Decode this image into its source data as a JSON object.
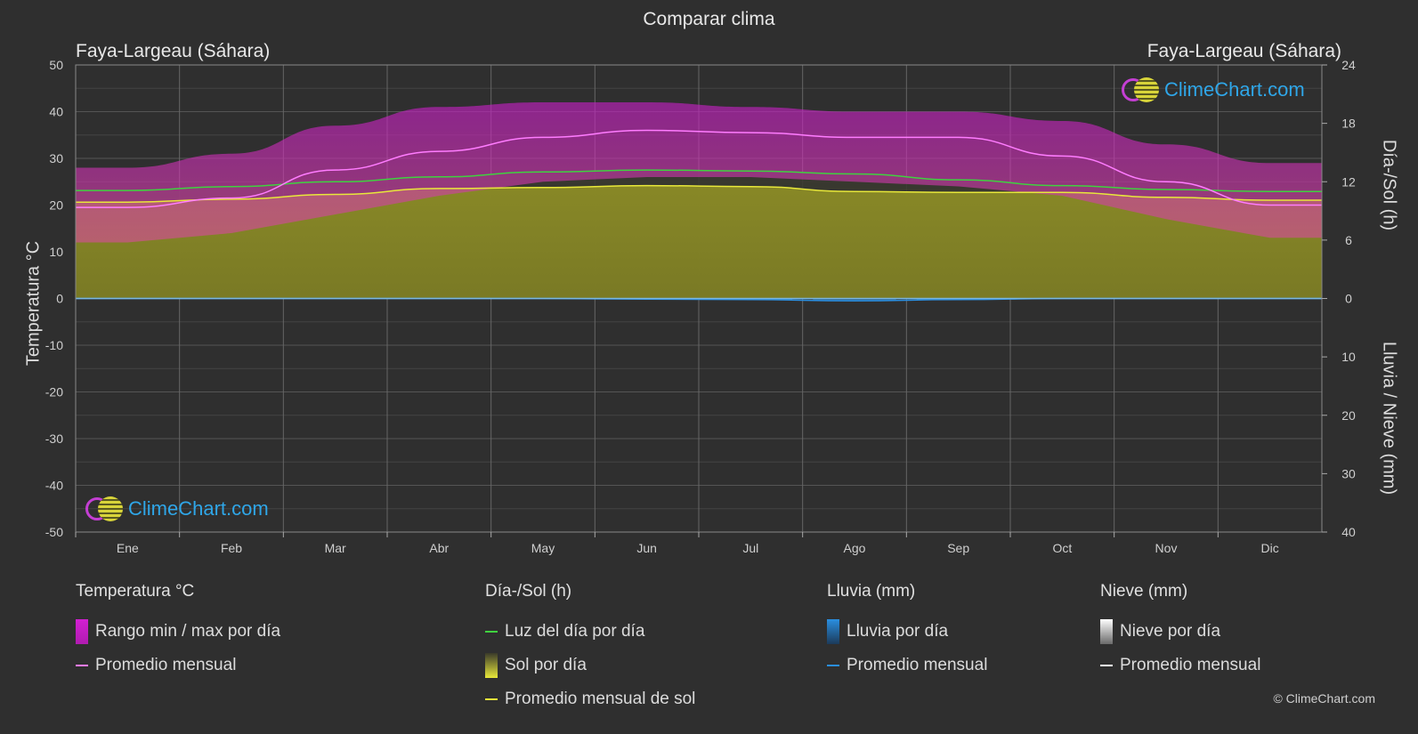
{
  "title": "Comparar clima",
  "location_left": "Faya-Largeau (Sáhara)",
  "location_right": "Faya-Largeau (Sáhara)",
  "axis": {
    "left_title": "Temperatura °C",
    "right_top_title": "Día-/Sol (h)",
    "right_bottom_title": "Lluvia / Nieve (mm)"
  },
  "logo_text": "ClimeChart.com",
  "copyright": "© ClimeChart.com",
  "legend": {
    "temp": {
      "head": "Temperatura °C",
      "range": "Rango min / max por día",
      "avg": "Promedio mensual"
    },
    "sun": {
      "head": "Día-/Sol (h)",
      "daylight": "Luz del día por día",
      "sunshine": "Sol por día",
      "avg": "Promedio mensual de sol"
    },
    "rain": {
      "head": "Lluvia (mm)",
      "daily": "Lluvia por día",
      "avg": "Promedio mensual"
    },
    "snow": {
      "head": "Nieve (mm)",
      "daily": "Nieve por día",
      "avg": "Promedio mensual"
    }
  },
  "colors": {
    "background": "#2f2f2f",
    "temp_range": "#d21fd2",
    "temp_avg": "#ff7cff",
    "daylight": "#3fd23f",
    "sunshine_fill": "#8c8c26",
    "sunshine_avg": "#e8e83a",
    "rain": "#2a8ee0",
    "snow": "#ffffff"
  },
  "chart_data": {
    "type": "area",
    "categories": [
      "Ene",
      "Feb",
      "Mar",
      "Abr",
      "May",
      "Jun",
      "Jul",
      "Ago",
      "Sep",
      "Oct",
      "Nov",
      "Dic"
    ],
    "temp_axis": {
      "min": -50,
      "max": 50,
      "ticks": [
        50,
        40,
        30,
        20,
        10,
        0,
        -10,
        -20,
        -30,
        -40,
        -50
      ]
    },
    "sun_axis": {
      "min": 0,
      "max": 24,
      "ticks": [
        24,
        18,
        12,
        6,
        0
      ]
    },
    "precip_axis": {
      "min": 0,
      "max": 40,
      "ticks": [
        10,
        20,
        30,
        40
      ]
    },
    "grid": true,
    "series": [
      {
        "name": "Promedio mensual",
        "kind": "temp_avg",
        "values": [
          19.5,
          21.5,
          27.5,
          31.5,
          34.5,
          36,
          35.5,
          34.5,
          34.5,
          30.5,
          25,
          20
        ]
      },
      {
        "name": "Rango min / max por día",
        "kind": "temp_max",
        "values": [
          28,
          31,
          37,
          41,
          42,
          42,
          41,
          40,
          40,
          38,
          33,
          29
        ]
      },
      {
        "name": "Rango min / max por día",
        "kind": "temp_min",
        "values": [
          12,
          14,
          18,
          22,
          25,
          26,
          26,
          25,
          24,
          22,
          17,
          13
        ]
      },
      {
        "name": "Luz del día por día",
        "kind": "daylight",
        "values": [
          11.1,
          11.5,
          12,
          12.5,
          13,
          13.2,
          13.1,
          12.8,
          12.2,
          11.6,
          11.2,
          11
        ]
      },
      {
        "name": "Sol por día",
        "kind": "sunshine",
        "values": [
          9.9,
          10.2,
          10.7,
          11.3,
          11.4,
          11.6,
          11.5,
          11,
          10.9,
          10.9,
          10.4,
          10.1
        ]
      },
      {
        "name": "Promedio mensual de sol",
        "kind": "sunshine_avg",
        "values": [
          9.9,
          10.2,
          10.7,
          11.3,
          11.4,
          11.6,
          11.5,
          11,
          10.9,
          10.9,
          10.4,
          10.1
        ]
      },
      {
        "name": "Lluvia por día",
        "kind": "rain",
        "values": [
          0,
          0,
          0,
          0,
          0,
          0.1,
          0.2,
          0.4,
          0.2,
          0,
          0,
          0
        ]
      },
      {
        "name": "Promedio mensual",
        "kind": "rain_avg",
        "values": [
          0,
          0,
          0,
          0,
          0,
          0.1,
          0.2,
          0.4,
          0.2,
          0,
          0,
          0
        ]
      }
    ]
  }
}
